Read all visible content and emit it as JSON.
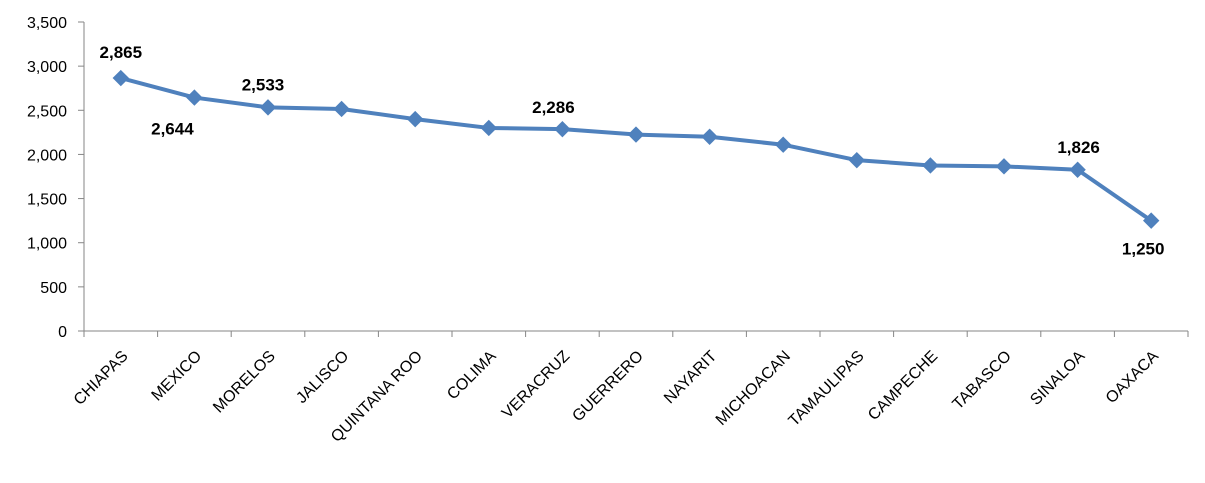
{
  "chart_data": {
    "type": "line",
    "categories": [
      "CHIAPAS",
      "MEXICO",
      "MORELOS",
      "JALISCO",
      "QUINTANA ROO",
      "COLIMA",
      "VERACRUZ",
      "GUERRERO",
      "NAYARIT",
      "MICHOACAN",
      "TAMAULIPAS",
      "CAMPECHE",
      "TABASCO",
      "SINALOA",
      "OAXACA"
    ],
    "series": [
      {
        "values": [
          2865,
          2644,
          2533,
          2515,
          2400,
          2300,
          2286,
          2225,
          2200,
          2110,
          1935,
          1875,
          1865,
          1826,
          1250
        ],
        "color": "#4f81bd"
      }
    ],
    "data_labels": [
      {
        "category": "CHIAPAS",
        "text": "2,865"
      },
      {
        "category": "MEXICO",
        "text": "2,644"
      },
      {
        "category": "MORELOS",
        "text": "2,533"
      },
      {
        "category": "VERACRUZ",
        "text": "2,286"
      },
      {
        "category": "SINALOA",
        "text": "1,826"
      },
      {
        "category": "OAXACA",
        "text": "1,250"
      }
    ],
    "ylim": [
      0,
      3500
    ],
    "yticks": [
      "0",
      "500",
      "1,000",
      "1,500",
      "2,000",
      "2,500",
      "3,000",
      "3,500"
    ],
    "grid": false,
    "legend": "none",
    "marker": "diamond",
    "title": "",
    "xlabel": "",
    "ylabel": ""
  }
}
